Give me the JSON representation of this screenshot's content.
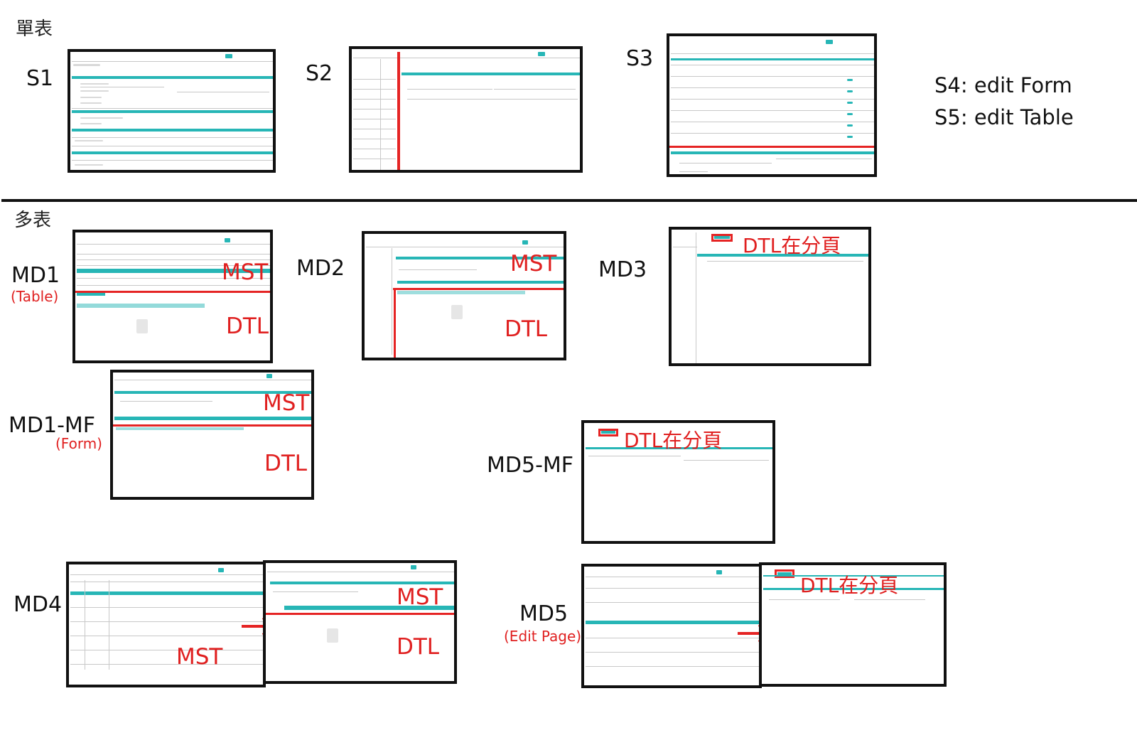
{
  "sections": {
    "single": "單表",
    "multi": "多表"
  },
  "labels": {
    "s1": "S1",
    "s2": "S2",
    "s3": "S3",
    "s4": "S4: edit Form",
    "s5": "S5: edit Table",
    "md1": "MD1",
    "md1_sub": "(Table)",
    "md2": "MD2",
    "md3": "MD3",
    "md1mf": "MD1-MF",
    "md1mf_sub": "(Form)",
    "md5mf": "MD5-MF",
    "md4": "MD4",
    "md5": "MD5",
    "md5_sub": "(Edit Page)"
  },
  "annotations": {
    "mst": "MST",
    "dtl": "DTL",
    "dtl_tab": "DTL在分頁"
  },
  "colors": {
    "accent": "#27b6b6",
    "marker": "#e52424",
    "frame": "#111111"
  }
}
